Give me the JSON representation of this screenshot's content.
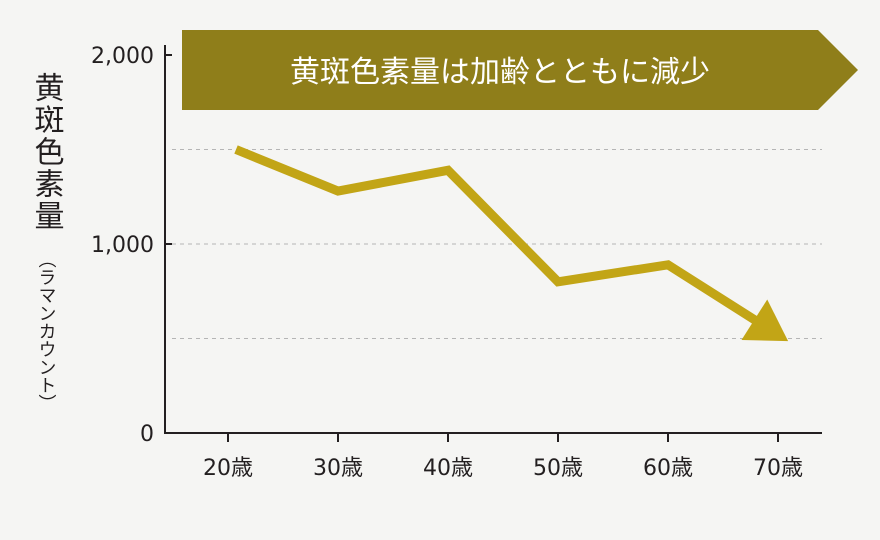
{
  "chart_data": {
    "type": "line",
    "title": "黄斑色素量は加齢とともに減少",
    "ylabel_main": "黄斑色素量",
    "ylabel_unit": "（ラマンカウント）",
    "xlabel": "",
    "categories": [
      "20歳",
      "30歳",
      "40歳",
      "50歳",
      "60歳",
      "70歳"
    ],
    "series": [
      {
        "values": [
          1500,
          1280,
          1390,
          800,
          890,
          520
        ]
      }
    ],
    "ylim": [
      0,
      2000
    ],
    "yticks": [
      0,
      1000,
      2000
    ],
    "ytick_labels": [
      "0",
      "1,000",
      "2,000"
    ],
    "gridlines": [
      500,
      1000,
      1500
    ],
    "grid": true,
    "line_end_arrow": true,
    "colors": {
      "line": "#c2a516",
      "banner": "#8f7e1a",
      "banner_text": "#ffffff",
      "axis": "#231f20",
      "grid": "#b5b5b5"
    }
  }
}
